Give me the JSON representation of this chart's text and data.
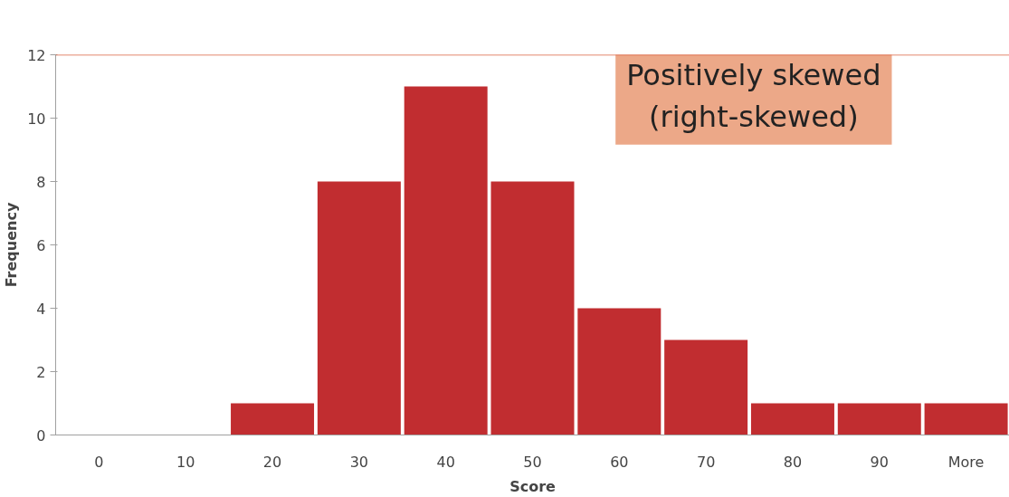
{
  "chart_data": {
    "type": "bar",
    "categories": [
      "0",
      "10",
      "20",
      "30",
      "40",
      "50",
      "60",
      "70",
      "80",
      "90",
      "More"
    ],
    "values": [
      0,
      0,
      1,
      8,
      11,
      8,
      4,
      3,
      1,
      1,
      1
    ],
    "color": "#c12d30",
    "xlabel": "Score",
    "ylabel": "Frequency",
    "ylim": [
      0,
      12
    ],
    "yticks": [
      0,
      2,
      4,
      6,
      8,
      10,
      12
    ],
    "ref_lines": [
      {
        "axis": "y",
        "value": 12,
        "label": null,
        "color": "#d9603f"
      }
    ],
    "annotations": [
      "Positively skewed\n(right-skewed)"
    ],
    "grid": false
  }
}
